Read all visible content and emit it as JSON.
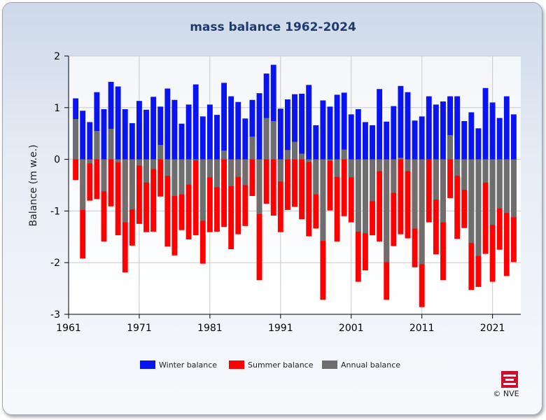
{
  "chart_data": {
    "type": "bar",
    "title": "mass balance 1962-2024",
    "ylabel": "Balance (m w.e.)",
    "ylim": [
      -3,
      2
    ],
    "xlim": [
      1961,
      2025
    ],
    "yticks": [
      "2",
      "1",
      "0",
      "-1",
      "-2",
      "-3"
    ],
    "xticks": [
      "1961",
      "1971",
      "1981",
      "1991",
      "2001",
      "2011",
      "2021"
    ],
    "grid": true,
    "legend_position": "bottom-center",
    "x": [
      1962,
      1963,
      1964,
      1965,
      1966,
      1967,
      1968,
      1969,
      1970,
      1971,
      1972,
      1973,
      1974,
      1975,
      1976,
      1977,
      1978,
      1979,
      1980,
      1981,
      1982,
      1983,
      1984,
      1985,
      1986,
      1987,
      1988,
      1989,
      1990,
      1991,
      1992,
      1993,
      1994,
      1995,
      1996,
      1997,
      1998,
      1999,
      2000,
      2001,
      2002,
      2003,
      2004,
      2005,
      2006,
      2007,
      2008,
      2009,
      2010,
      2011,
      2012,
      2013,
      2014,
      2015,
      2016,
      2017,
      2018,
      2019,
      2020,
      2021,
      2022,
      2023,
      2024
    ],
    "series": [
      {
        "name": "Winter balance",
        "color": "#0a14f0",
        "values": [
          1.18,
          0.94,
          0.72,
          1.3,
          0.97,
          1.5,
          1.41,
          0.97,
          0.7,
          1.13,
          0.96,
          1.21,
          1.02,
          1.37,
          1.15,
          0.69,
          1.06,
          1.45,
          0.83,
          1.06,
          0.86,
          1.48,
          1.22,
          1.11,
          0.79,
          1.15,
          1.28,
          1.66,
          1.83,
          0.98,
          1.16,
          1.26,
          1.27,
          1.44,
          0.66,
          1.14,
          1.02,
          1.25,
          1.29,
          0.87,
          0.97,
          0.72,
          0.66,
          1.36,
          0.73,
          1.03,
          1.42,
          1.3,
          0.75,
          0.83,
          1.22,
          1.06,
          1.12,
          1.22,
          1.22,
          0.74,
          0.91,
          0.6,
          1.38,
          1.1,
          0.8,
          1.22,
          0.87
        ]
      },
      {
        "name": "Summer balance",
        "color": "#ff0000",
        "values": [
          -0.4,
          -1.92,
          -0.8,
          -0.77,
          -1.59,
          -0.91,
          -1.47,
          -2.19,
          -1.67,
          -1.25,
          -1.41,
          -1.4,
          -0.72,
          -1.69,
          -1.86,
          -1.37,
          -1.55,
          -1.47,
          -2.02,
          -1.41,
          -1.4,
          -1.31,
          -1.74,
          -1.45,
          -1.29,
          -0.71,
          -2.34,
          -0.86,
          -1.09,
          -1.41,
          -0.98,
          -0.92,
          -1.16,
          -1.49,
          -1.34,
          -2.72,
          -0.99,
          -1.59,
          -1.1,
          -1.22,
          -2.37,
          -2.15,
          -1.47,
          -1.59,
          -2.72,
          -1.68,
          -1.45,
          -1.53,
          -2.09,
          -2.86,
          -1.22,
          -1.84,
          -2.34,
          -0.75,
          -1.54,
          -1.33,
          -2.53,
          -2.47,
          -1.83,
          -2.37,
          -1.75,
          -2.26,
          -1.99
        ]
      },
      {
        "name": "Annual balance",
        "color": "#6e6e6e",
        "values": [
          0.78,
          -0.98,
          -0.08,
          0.55,
          -0.62,
          0.59,
          -0.06,
          -1.22,
          -0.97,
          -0.12,
          -0.45,
          -0.19,
          0.28,
          -0.32,
          -0.71,
          -0.68,
          -0.49,
          -0.02,
          -1.19,
          -0.35,
          -0.54,
          0.17,
          -0.52,
          -0.34,
          -0.5,
          0.44,
          -1.06,
          0.8,
          0.74,
          -0.43,
          0.18,
          0.34,
          0.11,
          -0.05,
          -0.68,
          -1.58,
          -0.03,
          -0.34,
          0.19,
          -0.35,
          -1.4,
          -1.43,
          -0.81,
          -0.23,
          -1.99,
          -0.65,
          0.03,
          -0.23,
          -1.34,
          -2.03,
          0.0,
          -0.78,
          -1.22,
          0.47,
          -0.32,
          -0.59,
          -1.62,
          -1.87,
          -0.45,
          -1.27,
          -0.95,
          -1.04,
          -1.12
        ]
      }
    ]
  },
  "copyright": "© NVE"
}
